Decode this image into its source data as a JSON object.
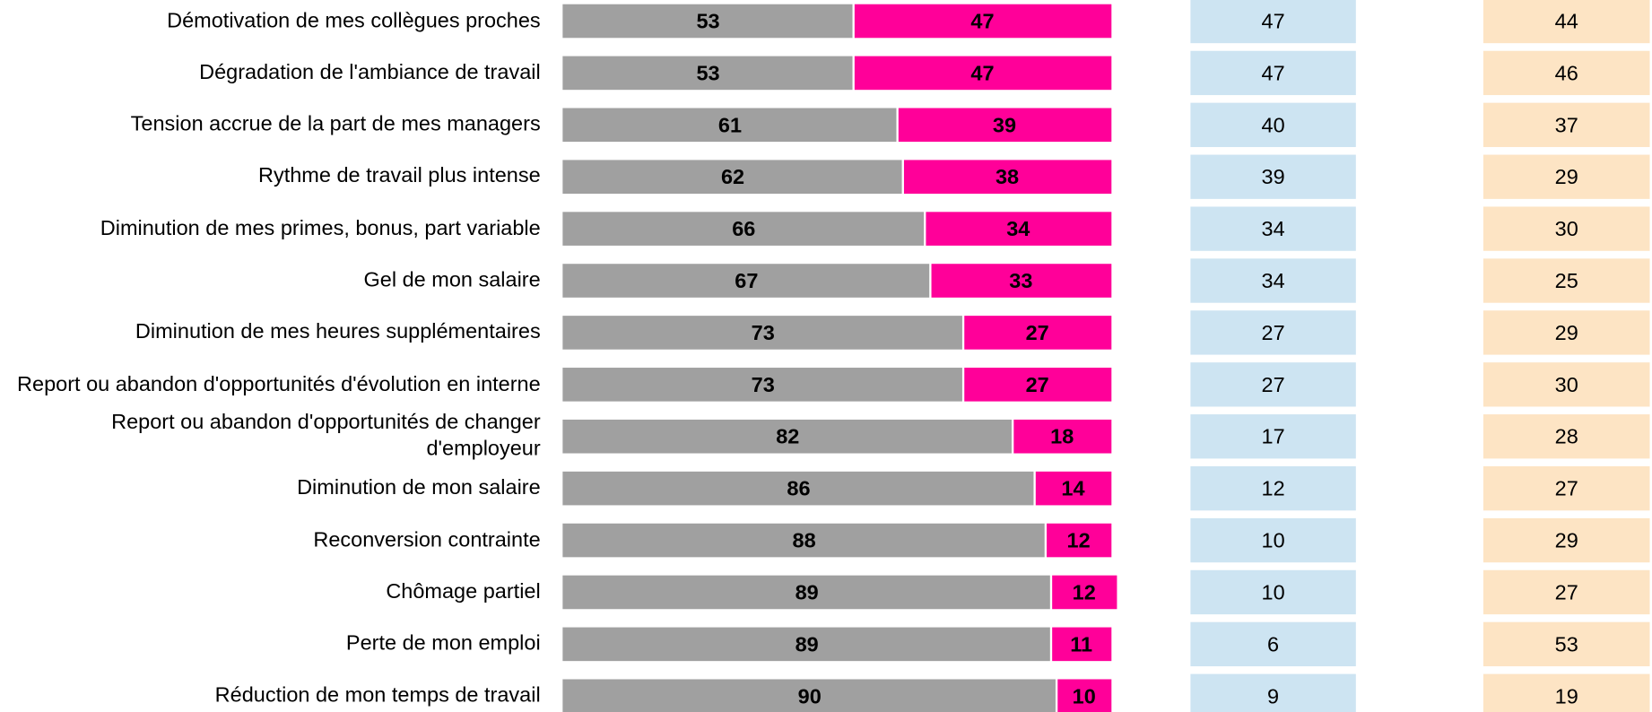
{
  "chart_data": {
    "type": "bar",
    "orientation": "horizontal",
    "stacked": true,
    "categories": [
      "Démotivation de mes collègues proches",
      "Dégradation de l'ambiance de travail",
      "Tension accrue de la part de mes managers",
      "Rythme de travail plus intense",
      "Diminution de mes primes, bonus, part variable",
      "Gel de mon salaire",
      "Diminution de mes heures supplémentaires",
      "Report ou abandon d'opportunités d'évolution en interne",
      "Report ou abandon d'opportunités de changer d'employeur",
      "Diminution de mon salaire",
      "Reconversion contrainte",
      "Chômage partiel",
      "Perte de mon emploi",
      "Réduction de mon temps de travail"
    ],
    "series": [
      {
        "color": "#a0a0a0",
        "values": [
          53,
          53,
          61,
          62,
          66,
          67,
          73,
          73,
          82,
          86,
          88,
          89,
          89,
          90
        ]
      },
      {
        "color": "#ff0099",
        "values": [
          47,
          47,
          39,
          38,
          34,
          33,
          27,
          27,
          18,
          14,
          12,
          12,
          11,
          10
        ]
      }
    ],
    "xlim": [
      0,
      100
    ],
    "columns": [
      {
        "color": "#cde4f2",
        "values": [
          47,
          47,
          40,
          39,
          34,
          34,
          27,
          27,
          17,
          12,
          10,
          10,
          6,
          9
        ]
      },
      {
        "color": "#fde4c4",
        "values": [
          44,
          46,
          37,
          29,
          30,
          25,
          29,
          30,
          28,
          27,
          29,
          27,
          53,
          19
        ]
      }
    ]
  }
}
